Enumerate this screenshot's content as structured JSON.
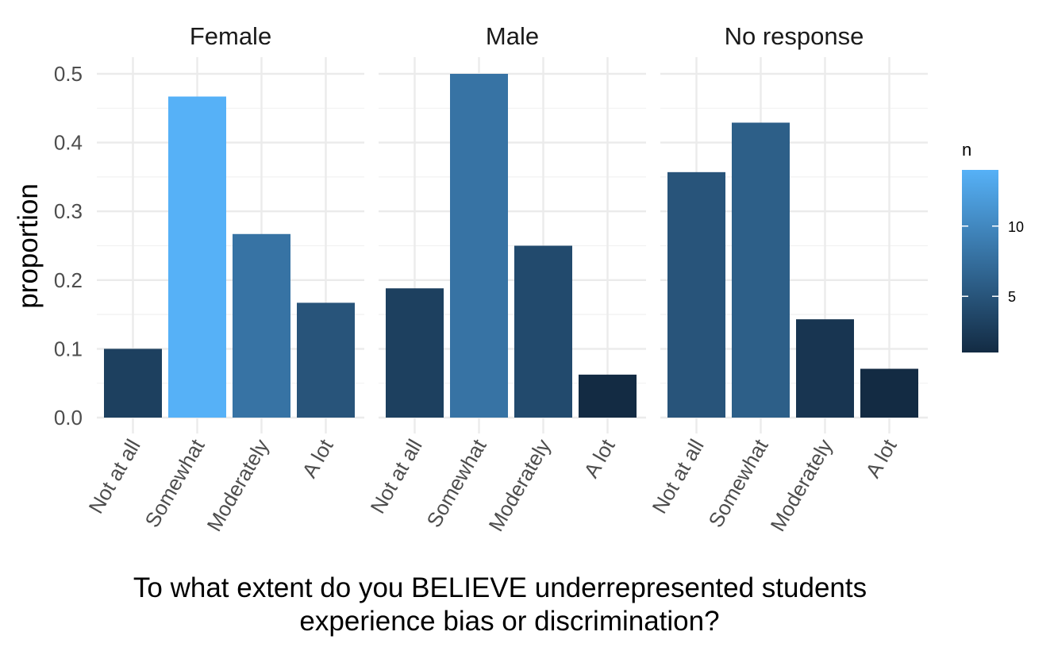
{
  "chart_data": {
    "type": "bar",
    "facet_by": "gender",
    "categories": [
      "Not at all",
      "Somewhat",
      "Moderately",
      "A lot"
    ],
    "xlabel_lines": [
      "To what extent do you BELIEVE underrepresented students",
      "experience bias or discrimination?"
    ],
    "ylabel": "proportion",
    "ylim": [
      0,
      0.5
    ],
    "yticks": [
      "0.0",
      "0.1",
      "0.2",
      "0.3",
      "0.4",
      "0.5"
    ],
    "grid": true,
    "facets": [
      {
        "name": "Female",
        "values": [
          0.1,
          0.467,
          0.267,
          0.167
        ],
        "n": [
          3,
          14,
          8,
          5
        ]
      },
      {
        "name": "Male",
        "values": [
          0.188,
          0.5,
          0.25,
          0.0625
        ],
        "n": [
          3,
          8,
          4,
          1
        ]
      },
      {
        "name": "No response",
        "values": [
          0.357,
          0.429,
          0.143,
          0.071
        ],
        "n": [
          5,
          6,
          2,
          1
        ]
      }
    ],
    "legend": {
      "title": "n",
      "position": "right",
      "ticks": [
        "5",
        "10"
      ],
      "range": [
        1,
        14
      ],
      "color_low": "#132B43",
      "color_high": "#56B1F7"
    }
  }
}
